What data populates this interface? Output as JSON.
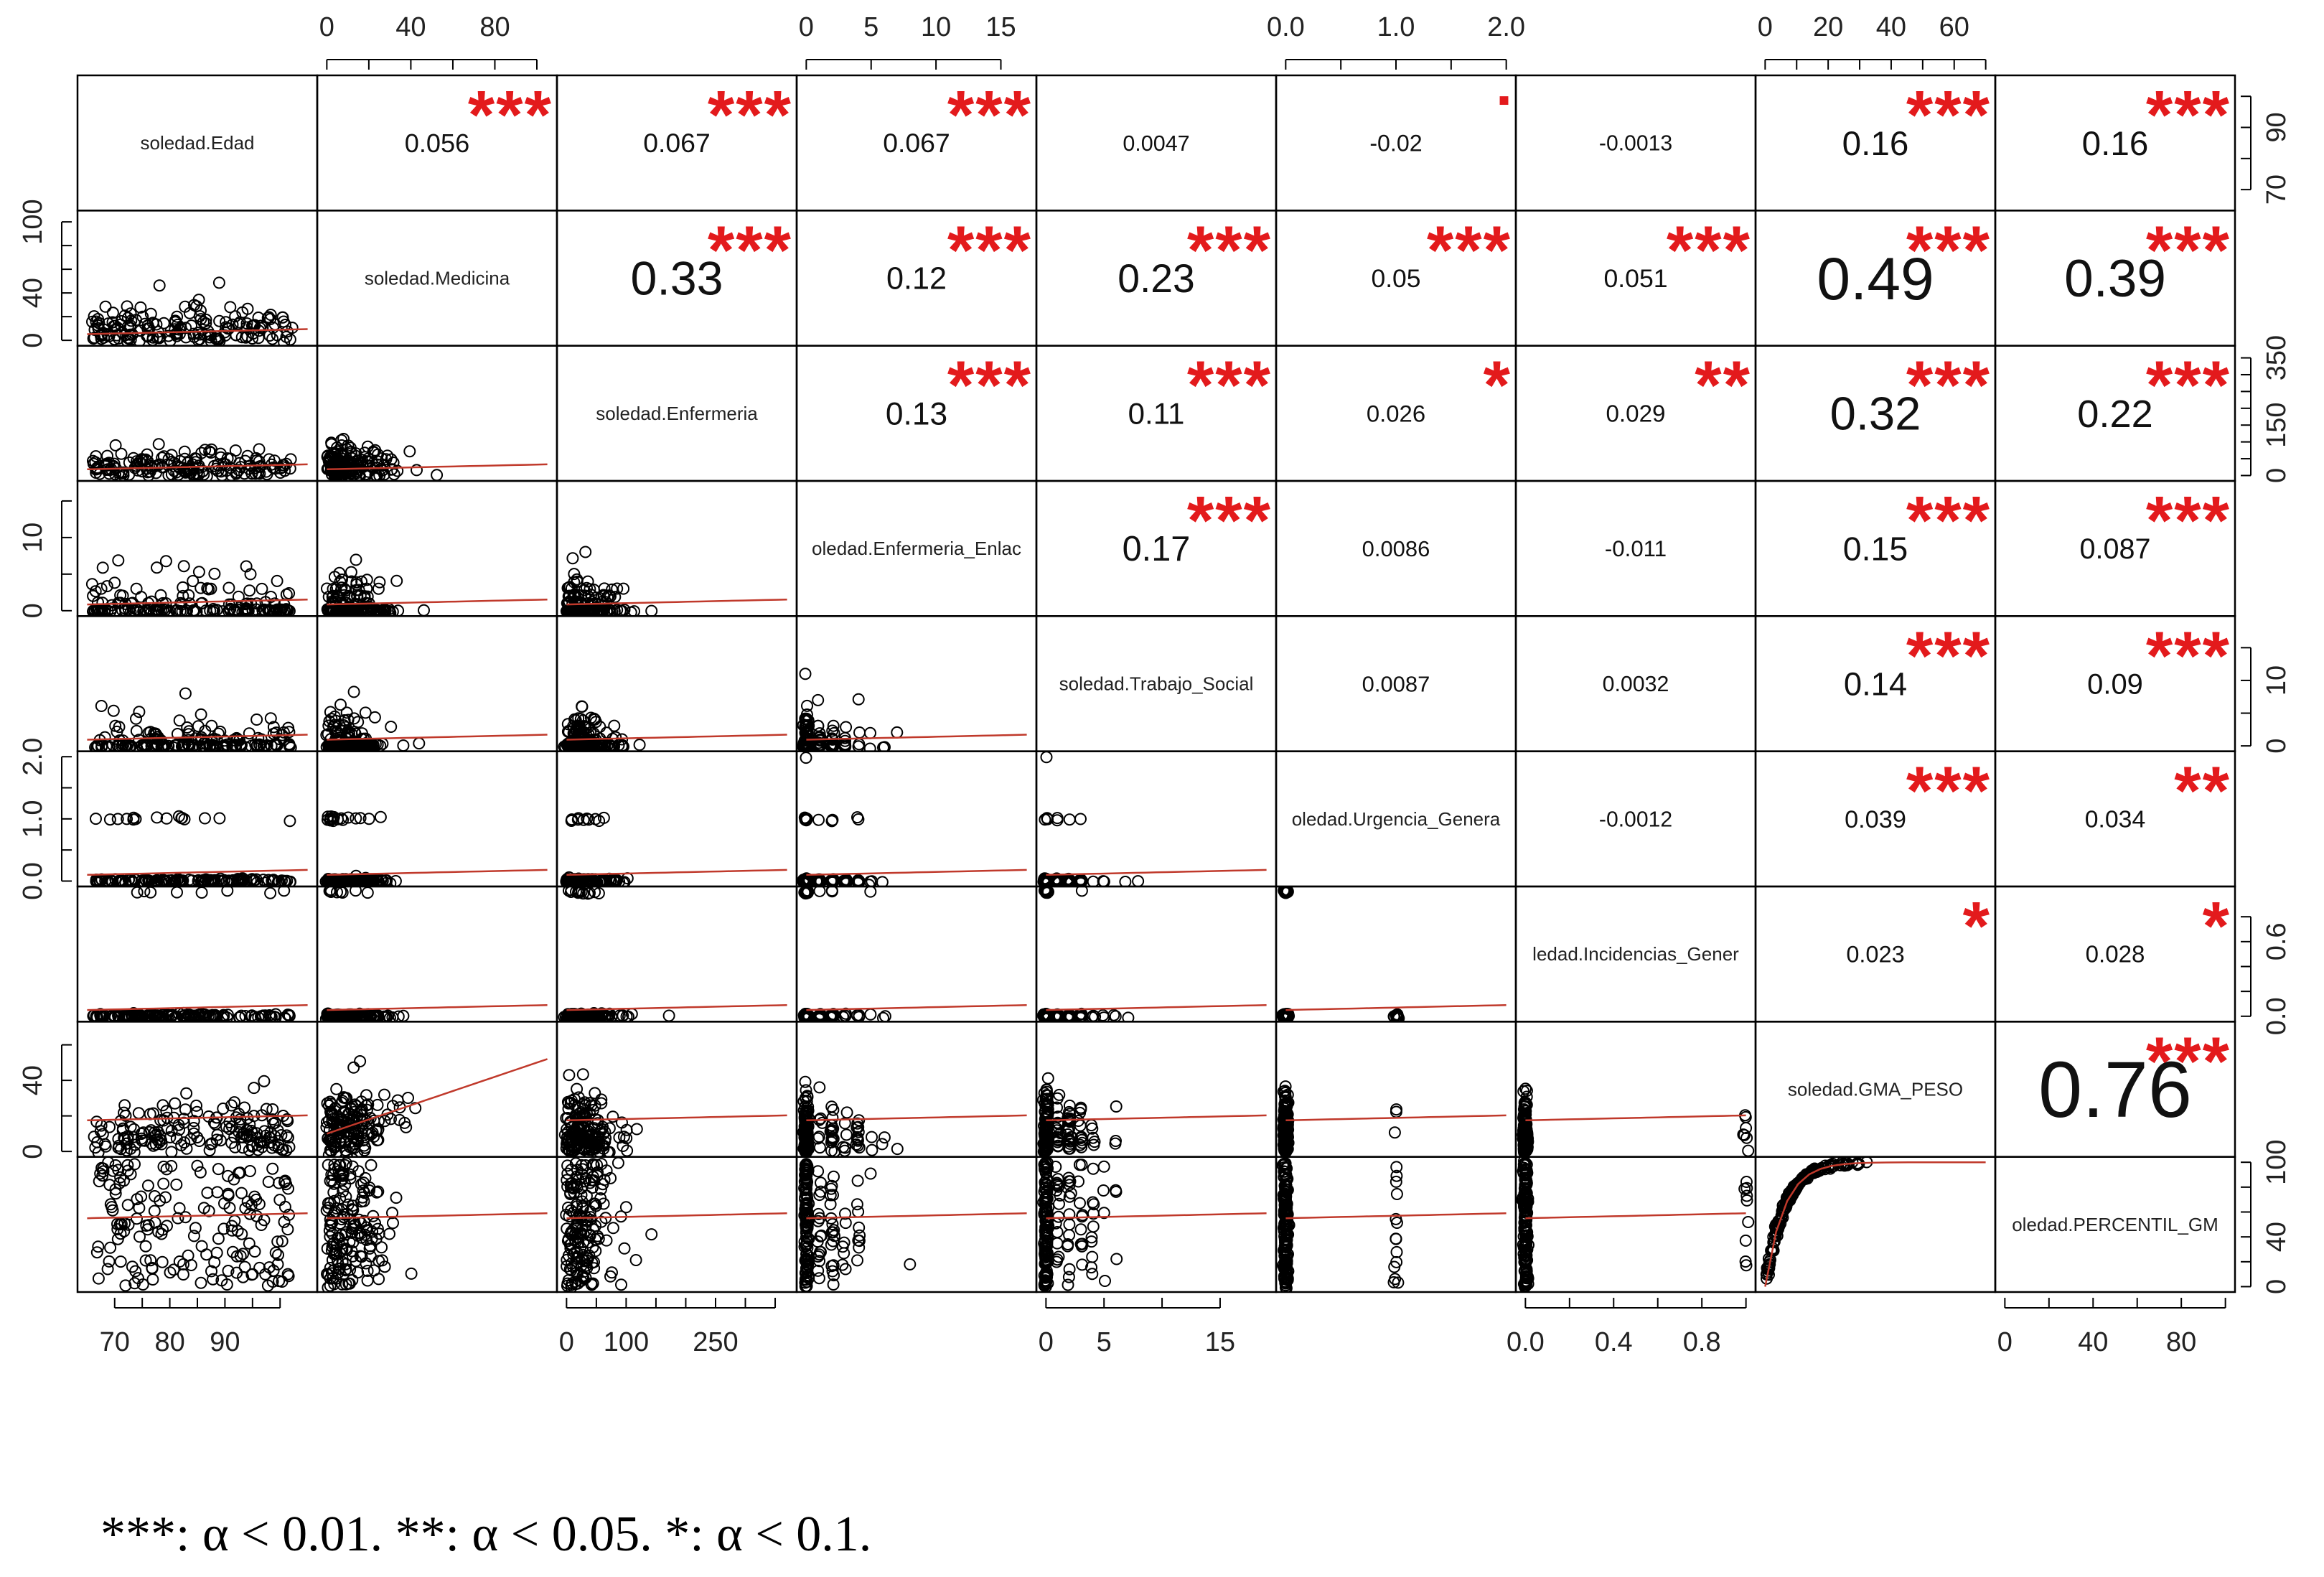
{
  "chart_data": {
    "type": "scatter",
    "variables": [
      "soledad.Edad",
      "soledad.Medicina",
      "soledad.Enfermeria",
      "soledad.Enfermeria_Enlac",
      "soledad.Trabajo_Social",
      "soledad.Urgencia_Genera",
      "soledad.Incidencias_Gener",
      "soledad.GMA_PESO",
      "soledad.PERCENTIL_GM"
    ],
    "diagonal_labels": [
      "soledad.Edad",
      "soledad.Medicina",
      "soledad.Enfermeria",
      "oledad.Enfermeria_Enlac",
      "soledad.Trabajo_Social",
      "oledad.Urgencia_Genera",
      "ledad.Incidencias_Gener",
      "soledad.GMA_PESO",
      "oledad.PERCENTIL_GM"
    ],
    "ranges": [
      [
        65,
        105
      ],
      [
        0,
        105
      ],
      [
        0,
        370
      ],
      [
        0,
        17
      ],
      [
        0,
        19
      ],
      [
        0,
        2
      ],
      [
        0,
        1
      ],
      [
        0,
        70
      ],
      [
        0,
        100
      ]
    ],
    "axis_ticks": {
      "top": [
        {
          "var": 1,
          "ticks": [
            0,
            40,
            80
          ],
          "minor": [
            0,
            20,
            40,
            60,
            80,
            100
          ]
        },
        {
          "var": 3,
          "ticks": [
            0,
            5,
            10,
            15
          ],
          "minor": [
            0,
            5,
            10,
            15
          ]
        },
        {
          "var": 5,
          "ticks": [
            0.0,
            1.0,
            2.0
          ],
          "labels": [
            "0.0",
            "1.0",
            "2.0"
          ],
          "minor": [
            0,
            0.5,
            1,
            1.5,
            2
          ]
        },
        {
          "var": 7,
          "ticks": [
            0,
            20,
            40,
            60
          ],
          "minor": [
            0,
            10,
            20,
            30,
            40,
            50,
            60,
            70
          ]
        }
      ],
      "bottom": [
        {
          "var": 0,
          "ticks": [
            70,
            80,
            90
          ],
          "minor": [
            70,
            75,
            80,
            85,
            90,
            95,
            100
          ]
        },
        {
          "var": 2,
          "ticks": [
            0,
            100,
            250
          ],
          "minor": [
            0,
            50,
            100,
            150,
            200,
            250,
            300,
            350
          ]
        },
        {
          "var": 4,
          "ticks": [
            0,
            5,
            15
          ],
          "minor": [
            0,
            5,
            10,
            15
          ]
        },
        {
          "var": 6,
          "ticks": [
            0.0,
            0.4,
            0.8
          ],
          "labels": [
            "0.0",
            "0.4",
            "0.8"
          ],
          "minor": [
            0,
            0.2,
            0.4,
            0.6,
            0.8,
            1.0
          ]
        },
        {
          "var": 8,
          "ticks": [
            0,
            40,
            80
          ],
          "minor": [
            0,
            20,
            40,
            60,
            80,
            100
          ]
        }
      ],
      "left": [
        {
          "var": 1,
          "ticks": [
            0,
            40,
            100
          ],
          "minor": [
            0,
            20,
            40,
            60,
            80,
            100
          ]
        },
        {
          "var": 3,
          "ticks": [
            0,
            10
          ],
          "minor": [
            0,
            5,
            10,
            15
          ]
        },
        {
          "var": 5,
          "ticks": [
            0.0,
            1.0,
            2.0
          ],
          "labels": [
            "0.0",
            "1.0",
            "2.0"
          ],
          "minor": [
            0,
            0.5,
            1,
            1.5,
            2
          ]
        },
        {
          "var": 7,
          "ticks": [
            0,
            40
          ],
          "minor": [
            0,
            20,
            40,
            60
          ]
        }
      ],
      "right": [
        {
          "var": 0,
          "ticks": [
            70,
            90
          ],
          "minor": [
            70,
            80,
            90,
            100
          ]
        },
        {
          "var": 2,
          "ticks": [
            0,
            150,
            350
          ],
          "minor": [
            0,
            50,
            100,
            150,
            200,
            250,
            300,
            350
          ]
        },
        {
          "var": 4,
          "ticks": [
            0,
            10
          ],
          "minor": [
            0,
            5,
            10,
            15
          ]
        },
        {
          "var": 6,
          "ticks": [
            0.0,
            0.6
          ],
          "labels": [
            "0.0",
            "0.6"
          ],
          "minor": [
            0,
            0.2,
            0.4,
            0.6,
            0.8
          ]
        },
        {
          "var": 8,
          "ticks": [
            0,
            40,
            100
          ],
          "minor": [
            0,
            20,
            40,
            60,
            80,
            100
          ]
        }
      ]
    },
    "correlations": [
      {
        "row": 0,
        "col": 1,
        "value": "0.056",
        "stars": "***"
      },
      {
        "row": 0,
        "col": 2,
        "value": "0.067",
        "stars": "***"
      },
      {
        "row": 0,
        "col": 3,
        "value": "0.067",
        "stars": "***"
      },
      {
        "row": 0,
        "col": 4,
        "value": "0.0047",
        "stars": ""
      },
      {
        "row": 0,
        "col": 5,
        "value": "-0.02",
        "stars": "."
      },
      {
        "row": 0,
        "col": 6,
        "value": "-0.0013",
        "stars": ""
      },
      {
        "row": 0,
        "col": 7,
        "value": "0.16",
        "stars": "***"
      },
      {
        "row": 0,
        "col": 8,
        "value": "0.16",
        "stars": "***"
      },
      {
        "row": 1,
        "col": 2,
        "value": "0.33",
        "stars": "***"
      },
      {
        "row": 1,
        "col": 3,
        "value": "0.12",
        "stars": "***"
      },
      {
        "row": 1,
        "col": 4,
        "value": "0.23",
        "stars": "***"
      },
      {
        "row": 1,
        "col": 5,
        "value": "0.05",
        "stars": "***"
      },
      {
        "row": 1,
        "col": 6,
        "value": "0.051",
        "stars": "***"
      },
      {
        "row": 1,
        "col": 7,
        "value": "0.49",
        "stars": "***"
      },
      {
        "row": 1,
        "col": 8,
        "value": "0.39",
        "stars": "***"
      },
      {
        "row": 2,
        "col": 3,
        "value": "0.13",
        "stars": "***"
      },
      {
        "row": 2,
        "col": 4,
        "value": "0.11",
        "stars": "***"
      },
      {
        "row": 2,
        "col": 5,
        "value": "0.026",
        "stars": "*"
      },
      {
        "row": 2,
        "col": 6,
        "value": "0.029",
        "stars": "**"
      },
      {
        "row": 2,
        "col": 7,
        "value": "0.32",
        "stars": "***"
      },
      {
        "row": 2,
        "col": 8,
        "value": "0.22",
        "stars": "***"
      },
      {
        "row": 3,
        "col": 4,
        "value": "0.17",
        "stars": "***"
      },
      {
        "row": 3,
        "col": 5,
        "value": "0.0086",
        "stars": ""
      },
      {
        "row": 3,
        "col": 6,
        "value": "-0.011",
        "stars": ""
      },
      {
        "row": 3,
        "col": 7,
        "value": "0.15",
        "stars": "***"
      },
      {
        "row": 3,
        "col": 8,
        "value": "0.087",
        "stars": "***"
      },
      {
        "row": 4,
        "col": 5,
        "value": "0.0087",
        "stars": ""
      },
      {
        "row": 4,
        "col": 6,
        "value": "0.0032",
        "stars": ""
      },
      {
        "row": 4,
        "col": 7,
        "value": "0.14",
        "stars": "***"
      },
      {
        "row": 4,
        "col": 8,
        "value": "0.09",
        "stars": "***"
      },
      {
        "row": 5,
        "col": 6,
        "value": "-0.0012",
        "stars": ""
      },
      {
        "row": 5,
        "col": 7,
        "value": "0.039",
        "stars": "***"
      },
      {
        "row": 5,
        "col": 8,
        "value": "0.034",
        "stars": "**"
      },
      {
        "row": 6,
        "col": 7,
        "value": "0.023",
        "stars": "*"
      },
      {
        "row": 6,
        "col": 8,
        "value": "0.028",
        "stars": "*"
      },
      {
        "row": 7,
        "col": 8,
        "value": "0.76",
        "stars": "***"
      }
    ],
    "scatter_points": "many (tens of thousands); drawn schematically",
    "star_color": "#e31a1c",
    "smooth_line_color": "#c0392b",
    "point_style": "open circles",
    "grid": false,
    "legend": "none"
  },
  "caption": "***: α < 0.01. **: α < 0.05. *: α < 0.1."
}
